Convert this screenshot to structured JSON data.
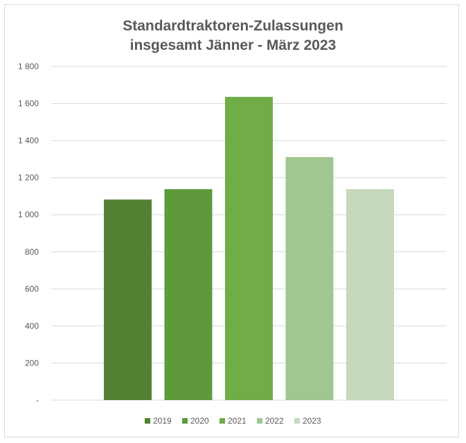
{
  "chart_data": {
    "type": "bar",
    "title_line1": "Standardtraktoren-Zulassungen",
    "title_line2": "insgesamt Jänner - März 2023",
    "categories": [
      "2019",
      "2020",
      "2021",
      "2022",
      "2023"
    ],
    "values": [
      1082,
      1138,
      1636,
      1311,
      1138
    ],
    "colors": [
      "#548235",
      "#5e9a3c",
      "#70ad47",
      "#a2c68f",
      "#c5d9bc"
    ],
    "ylim": [
      0,
      1800
    ],
    "yticks": [
      0,
      200,
      400,
      600,
      800,
      1000,
      1200,
      1400,
      1600,
      1800
    ],
    "ytick_labels": [
      "-",
      "200",
      "400",
      "600",
      "800",
      "1 000",
      "1 200",
      "1 400",
      "1 600",
      "1 800"
    ],
    "grid": true,
    "legend_position": "bottom",
    "legend": [
      "2019",
      "2020",
      "2021",
      "2022",
      "2023"
    ]
  }
}
